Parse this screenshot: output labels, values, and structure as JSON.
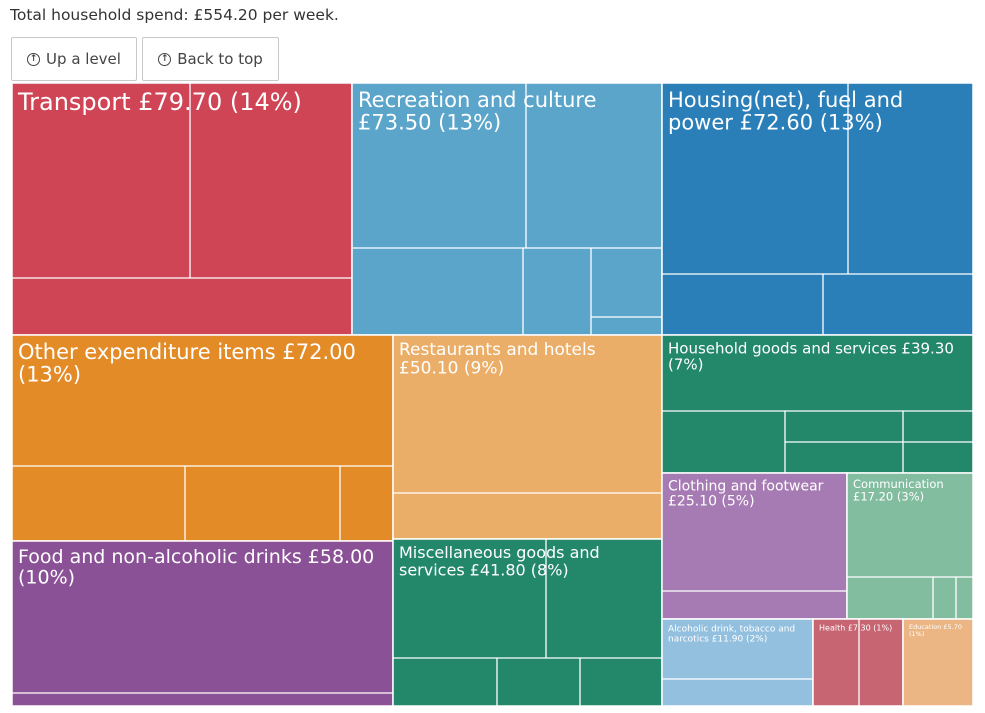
{
  "total_text": "Total household spend: £554.20 per week.",
  "buttons": {
    "up_label": "Up a level",
    "top_label": "Back to top",
    "icon": "up-arrow-circle-icon"
  },
  "chart_data": {
    "type": "treemap",
    "title": "",
    "total": 554.2,
    "currency": "£",
    "categories": [
      {
        "label_1": "Transport £79.70 (14%)",
        "label_2": "",
        "value": 79.7,
        "percent": 14,
        "color": "#cf4556"
      },
      {
        "label_1": "Recreation and culture",
        "label_2": "£73.50 (13%)",
        "value": 73.5,
        "percent": 13,
        "color": "#5ba5cb"
      },
      {
        "label_1": "Housing(net), fuel and",
        "label_2": "power £72.60 (13%)",
        "value": 72.6,
        "percent": 13,
        "color": "#2a7fb9"
      },
      {
        "label_1": "Other expenditure items £72.00",
        "label_2": "(13%)",
        "value": 72.0,
        "percent": 13,
        "color": "#e38b27"
      },
      {
        "label_1": "Restaurants and hotels",
        "label_2": "£50.10 (9%)",
        "value": 50.1,
        "percent": 9,
        "color": "#ebae68"
      },
      {
        "label_1": "Household goods and services £39.30",
        "label_2": "(7%)",
        "value": 39.3,
        "percent": 7,
        "color": "#23876a"
      },
      {
        "label_1": "Food and non-alcoholic drinks £58.00",
        "label_2": "(10%)",
        "value": 58.0,
        "percent": 10,
        "color": "#8b5197"
      },
      {
        "label_1": "Miscellaneous goods and",
        "label_2": "services £41.80 (8%)",
        "value": 41.8,
        "percent": 8,
        "color": "#23876a"
      },
      {
        "label_1": "Clothing and footwear",
        "label_2": "£25.10 (5%)",
        "value": 25.1,
        "percent": 5,
        "color": "#a67bb3"
      },
      {
        "label_1": "Communication",
        "label_2": "£17.20 (3%)",
        "value": 17.2,
        "percent": 3,
        "color": "#82bda0"
      },
      {
        "label_1": "Alcoholic drink, tobacco and",
        "label_2": "narcotics £11.90 (2%)",
        "value": 11.9,
        "percent": 2,
        "color": "#93c0df"
      },
      {
        "label_1": "Health £7.30 (1%)",
        "label_2": "",
        "value": 7.3,
        "percent": 1,
        "color": "#c86572"
      },
      {
        "label_1": "Education £5.70",
        "label_2": "(1%)",
        "value": 5.7,
        "percent": 1,
        "color": "#ebb683"
      }
    ]
  }
}
